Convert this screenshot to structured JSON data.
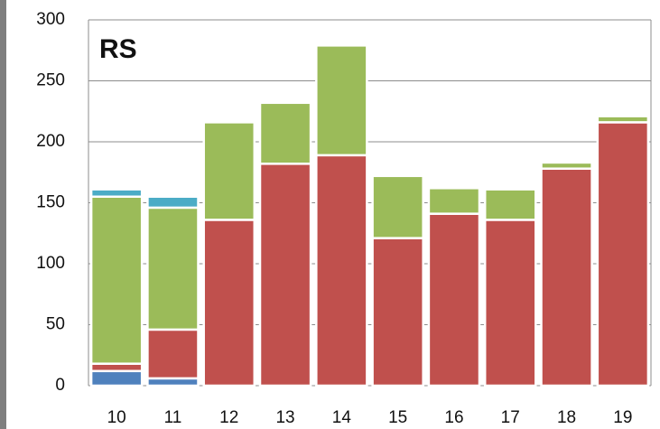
{
  "chart_data": {
    "type": "bar",
    "stacked": true,
    "title": "RS",
    "categories": [
      "10",
      "11",
      "12",
      "13",
      "14",
      "15",
      "16",
      "17",
      "18",
      "19"
    ],
    "series": [
      {
        "color": "#4f81bd",
        "values": [
          12,
          6,
          null,
          null,
          null,
          null,
          null,
          null,
          null,
          null
        ]
      },
      {
        "color": "#c0504d",
        "values": [
          6,
          40,
          136,
          182,
          189,
          121,
          141,
          136,
          178,
          216
        ]
      },
      {
        "color": "#9bbb59",
        "values": [
          137,
          100,
          80,
          50,
          90,
          51,
          21,
          25,
          5,
          5
        ]
      },
      {
        "color": "#4bacc6",
        "values": [
          6,
          9,
          null,
          null,
          null,
          null,
          null,
          null,
          null,
          null
        ]
      }
    ],
    "ylim": [
      0,
      300
    ],
    "yticks": [
      0,
      50,
      100,
      150,
      200,
      250,
      300
    ],
    "grid": true
  }
}
